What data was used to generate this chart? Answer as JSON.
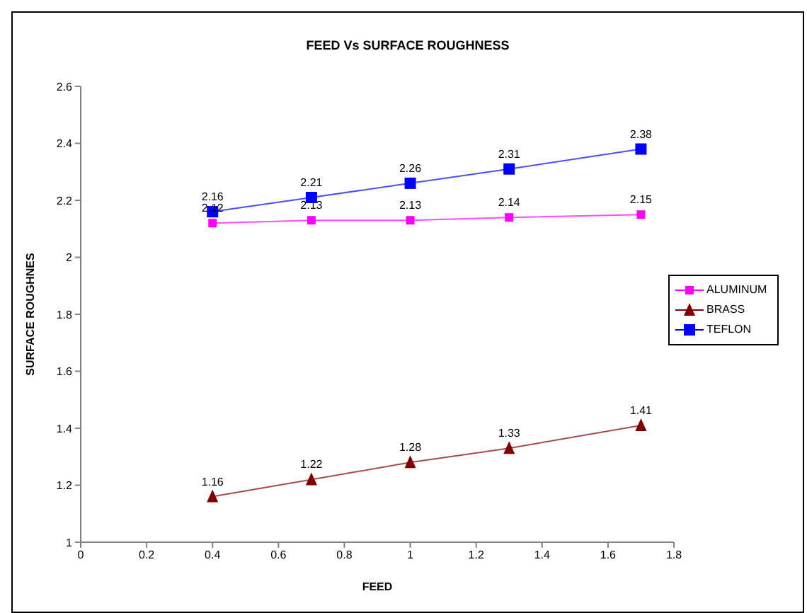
{
  "chart_data": {
    "type": "line",
    "title": "FEED Vs SURFACE ROUGHNESS",
    "xlabel": "FEED",
    "ylabel": "SURFACE ROUGHNES",
    "x": [
      0.4,
      0.7,
      1.0,
      1.3,
      1.7
    ],
    "series": [
      {
        "name": "ALUMINUM",
        "color": "#ff00ff",
        "marker": "square",
        "values": [
          2.12,
          2.13,
          2.13,
          2.14,
          2.15
        ]
      },
      {
        "name": "BRASS",
        "color": "#800000",
        "marker": "triangle",
        "values": [
          1.16,
          1.22,
          1.28,
          1.33,
          1.41
        ]
      },
      {
        "name": "TEFLON",
        "color": "#0000ff",
        "marker": "square",
        "values": [
          2.16,
          2.21,
          2.26,
          2.31,
          2.38
        ]
      }
    ],
    "xlim": [
      0,
      1.8
    ],
    "xticks": [
      0,
      0.2,
      0.4,
      0.6,
      0.8,
      1,
      1.2,
      1.4,
      1.6,
      1.8
    ],
    "ylim": [
      1,
      2.6
    ],
    "yticks": [
      1,
      1.2,
      1.4,
      1.6,
      1.8,
      2,
      2.2,
      2.4,
      2.6
    ],
    "grid": false,
    "legend": "right",
    "data_labels": true,
    "line_style": "solid"
  }
}
